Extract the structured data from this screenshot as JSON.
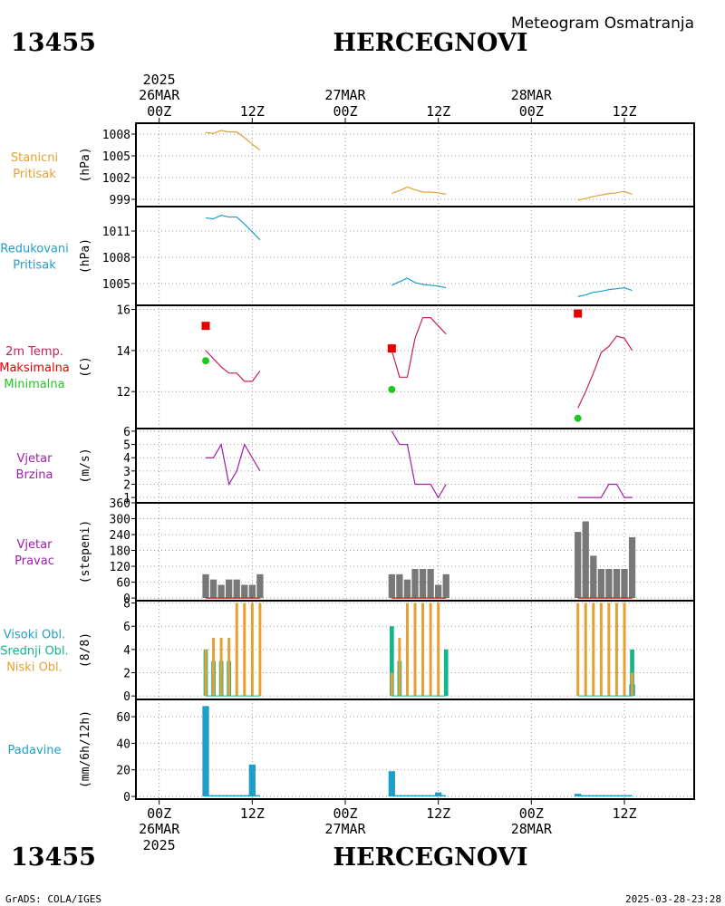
{
  "header": {
    "station_id": "13455",
    "station_name": "HERCEGNOVI",
    "subtitle": "Meteogram Osmatranja"
  },
  "time_axis": {
    "top": [
      {
        "line1": "2025",
        "line2": "26MAR",
        "line3": "00Z"
      },
      {
        "line1": "",
        "line2": "",
        "line3": "12Z"
      },
      {
        "line1": "",
        "line2": "27MAR",
        "line3": "00Z"
      },
      {
        "line1": "",
        "line2": "",
        "line3": "12Z"
      },
      {
        "line1": "",
        "line2": "28MAR",
        "line3": "00Z"
      },
      {
        "line1": "",
        "line2": "",
        "line3": "12Z"
      }
    ],
    "bottom": [
      {
        "line1": "00Z",
        "line2": "26MAR",
        "line3": "2025"
      },
      {
        "line1": "12Z",
        "line2": "",
        "line3": ""
      },
      {
        "line1": "00Z",
        "line2": "27MAR",
        "line3": ""
      },
      {
        "line1": "12Z",
        "line2": "",
        "line3": ""
      },
      {
        "line1": "00Z",
        "line2": "28MAR",
        "line3": ""
      },
      {
        "line1": "12Z",
        "line2": "",
        "line3": ""
      }
    ],
    "tick_hours": [
      0,
      12,
      24,
      36,
      48,
      60
    ],
    "range_hours": [
      -3,
      69
    ]
  },
  "panels": [
    {
      "key": "stanicni",
      "labels": [
        "Stanicni",
        "Pritisak"
      ],
      "label_color": "#e6a032",
      "unit": "(hPa)"
    },
    {
      "key": "redukovani",
      "labels": [
        "Redukovani",
        "Pritisak"
      ],
      "label_color": "#1e9fc8",
      "unit": "(hPa)"
    },
    {
      "key": "temp",
      "labels": [
        "2m Temp.",
        "Maksimalna",
        "Minimalna"
      ],
      "label_colors": [
        "#c81e5a",
        "#e60000",
        "#1ec81e"
      ],
      "unit": "(C)"
    },
    {
      "key": "brzina",
      "labels": [
        "Vjetar",
        "Brzina"
      ],
      "label_color": "#a01eaa",
      "unit": "(m/s)"
    },
    {
      "key": "pravac",
      "labels": [
        "Vjetar",
        "Pravac"
      ],
      "label_color": "#a01eaa",
      "unit": "(stepeni)"
    },
    {
      "key": "oblaci",
      "labels": [
        "Visoki Obl.",
        "Srednji Obl.",
        "Niski Obl."
      ],
      "label_colors": [
        "#1e9fc8",
        "#14b48c",
        "#e6a032"
      ],
      "unit": "(8/8)"
    },
    {
      "key": "padavine",
      "labels": [
        "Padavine"
      ],
      "label_color": "#1e9fc8",
      "unit": "(mm/6h/12h)"
    }
  ],
  "chart_data": [
    {
      "type": "line",
      "key": "stanicni",
      "color": "#e6a032",
      "ylim": [
        998,
        1009.5
      ],
      "yticks": [
        999,
        1002,
        1005,
        1008
      ],
      "segments": [
        {
          "x": [
            6,
            7,
            8,
            9,
            10,
            11,
            12,
            13
          ],
          "y": [
            1008.2,
            1008.1,
            1008.5,
            1008.3,
            1008.3,
            1007.5,
            1006.6,
            1005.8
          ]
        },
        {
          "x": [
            30,
            31,
            32,
            33,
            34,
            35,
            36,
            37
          ],
          "y": [
            999.8,
            1000.2,
            1000.7,
            1000.3,
            1000.0,
            1000.0,
            999.9,
            999.7
          ]
        },
        {
          "x": [
            54,
            55,
            56,
            57,
            58,
            59,
            60,
            61
          ],
          "y": [
            998.9,
            999.1,
            999.4,
            999.6,
            999.8,
            999.9,
            1000.1,
            999.7
          ]
        }
      ]
    },
    {
      "type": "line",
      "key": "redukovani",
      "color": "#1e9fc8",
      "ylim": [
        1002.5,
        1013.8
      ],
      "yticks": [
        1005,
        1008,
        1011
      ],
      "segments": [
        {
          "x": [
            6,
            7,
            8,
            9,
            10,
            11,
            12,
            13
          ],
          "y": [
            1012.5,
            1012.4,
            1012.8,
            1012.6,
            1012.6,
            1011.8,
            1010.9,
            1010.0
          ]
        },
        {
          "x": [
            30,
            31,
            32,
            33,
            34,
            35,
            36,
            37
          ],
          "y": [
            1004.8,
            1005.2,
            1005.6,
            1005.1,
            1004.9,
            1004.8,
            1004.7,
            1004.5
          ]
        },
        {
          "x": [
            54,
            55,
            56,
            57,
            58,
            59,
            60,
            61
          ],
          "y": [
            1003.5,
            1003.7,
            1004.0,
            1004.1,
            1004.3,
            1004.4,
            1004.5,
            1004.2
          ]
        }
      ]
    },
    {
      "type": "line",
      "key": "temp",
      "color": "#c81e5a",
      "ylim": [
        10.2,
        16.2
      ],
      "yticks": [
        12,
        14,
        16
      ],
      "segments": [
        {
          "x": [
            6,
            7,
            8,
            9,
            10,
            11,
            12,
            13
          ],
          "y": [
            14.0,
            13.6,
            13.2,
            12.9,
            12.9,
            12.5,
            12.5,
            13.0
          ]
        },
        {
          "x": [
            30,
            31,
            32,
            33,
            34,
            35,
            36,
            37
          ],
          "y": [
            14.0,
            12.7,
            12.7,
            14.6,
            15.6,
            15.6,
            15.2,
            14.8
          ]
        },
        {
          "x": [
            54,
            55,
            56,
            57,
            58,
            59,
            60,
            61
          ],
          "y": [
            11.2,
            12.0,
            12.9,
            13.9,
            14.2,
            14.7,
            14.6,
            14.0
          ]
        }
      ],
      "max_markers": {
        "color": "#e60000",
        "x": [
          6,
          30,
          54
        ],
        "y": [
          15.2,
          14.1,
          15.8
        ]
      },
      "min_markers": {
        "color": "#1ec81e",
        "x": [
          6,
          30,
          54
        ],
        "y": [
          13.5,
          12.1,
          10.7
        ]
      }
    },
    {
      "type": "line",
      "key": "brzina",
      "color": "#a01eaa",
      "ylim": [
        0.6,
        6.2
      ],
      "yticks": [
        1,
        2,
        3,
        4,
        5,
        6
      ],
      "segments": [
        {
          "x": [
            6,
            7,
            8,
            9,
            10,
            11,
            12,
            13
          ],
          "y": [
            4,
            4,
            5,
            2,
            3,
            5,
            4,
            3
          ]
        },
        {
          "x": [
            30,
            31,
            32,
            33,
            34,
            35,
            36,
            37
          ],
          "y": [
            6,
            5,
            5,
            2,
            2,
            2,
            1,
            2
          ]
        },
        {
          "x": [
            54,
            55,
            56,
            57,
            58,
            59,
            60,
            61
          ],
          "y": [
            1,
            1,
            1,
            1,
            2,
            2,
            1,
            1
          ]
        }
      ]
    },
    {
      "type": "bar",
      "key": "pravac",
      "color": "#787878",
      "baseline_color": "#dc2828",
      "ylim": [
        -10,
        360
      ],
      "yticks": [
        0,
        60,
        120,
        180,
        240,
        300,
        360
      ],
      "x": [
        6,
        7,
        8,
        9,
        10,
        11,
        12,
        13,
        30,
        31,
        32,
        33,
        34,
        35,
        36,
        37,
        54,
        55,
        56,
        57,
        58,
        59,
        60,
        61
      ],
      "values": [
        90,
        70,
        50,
        70,
        70,
        50,
        50,
        90,
        90,
        90,
        70,
        110,
        110,
        110,
        50,
        90,
        250,
        290,
        160,
        110,
        110,
        110,
        110,
        230
      ]
    },
    {
      "type": "bar",
      "key": "oblaci",
      "ylim": [
        -0.3,
        8.2
      ],
      "yticks": [
        0,
        2,
        4,
        6,
        8
      ],
      "series": [
        {
          "name": "Visoki Obl.",
          "color": "#1e9fc8",
          "x": [
            6,
            7,
            8,
            9,
            10,
            11,
            12,
            13,
            30,
            31,
            32,
            33,
            34,
            35,
            36,
            37,
            54,
            55,
            56,
            57,
            58,
            59,
            60,
            61
          ],
          "values": [
            0,
            0,
            0,
            0,
            0,
            0,
            0,
            0,
            0,
            0,
            0,
            0,
            0,
            0,
            0,
            0,
            0,
            0,
            0,
            0,
            0,
            0,
            0,
            1
          ]
        },
        {
          "name": "Srednji Obl.",
          "color": "#14b48c",
          "x": [
            6,
            7,
            8,
            9,
            10,
            11,
            12,
            13,
            30,
            31,
            32,
            33,
            34,
            35,
            36,
            37,
            54,
            55,
            56,
            57,
            58,
            59,
            60,
            61
          ],
          "values": [
            4,
            3,
            3,
            3,
            0,
            0,
            0,
            0,
            6,
            3,
            0,
            0,
            0,
            0,
            0,
            4,
            0,
            0,
            0,
            0,
            0,
            0,
            0,
            4
          ]
        },
        {
          "name": "Niski Obl.",
          "color": "#e6a032",
          "x": [
            6,
            7,
            8,
            9,
            10,
            11,
            12,
            13,
            30,
            31,
            32,
            33,
            34,
            35,
            36,
            37,
            54,
            55,
            56,
            57,
            58,
            59,
            60,
            61
          ],
          "values": [
            4,
            5,
            5,
            5,
            8,
            8,
            8,
            8,
            2,
            5,
            8,
            8,
            8,
            8,
            8,
            0,
            8,
            8,
            8,
            8,
            8,
            8,
            8,
            2
          ]
        }
      ]
    },
    {
      "type": "bar",
      "key": "padavine",
      "color": "#1e9fc8",
      "ylim": [
        -2,
        73
      ],
      "yticks": [
        0,
        20,
        40,
        60
      ],
      "bars": [
        {
          "x": 6,
          "value": 68,
          "wide": true
        },
        {
          "x": 12,
          "value": 24,
          "wide": true
        },
        {
          "x": 30,
          "value": 19,
          "wide": true
        },
        {
          "x": 36,
          "value": 3,
          "wide": true
        },
        {
          "x": 54,
          "value": 2,
          "wide": true
        }
      ],
      "trace": [
        {
          "x": [
            6,
            13
          ],
          "y": [
            0.5,
            0.5
          ]
        },
        {
          "x": [
            30,
            37
          ],
          "y": [
            0.5,
            0.5
          ]
        },
        {
          "x": [
            54,
            61
          ],
          "y": [
            0.5,
            0.5
          ]
        }
      ]
    }
  ],
  "footer": {
    "left": "GrADS: COLA/IGES",
    "right": "2025-03-28-23:28"
  }
}
